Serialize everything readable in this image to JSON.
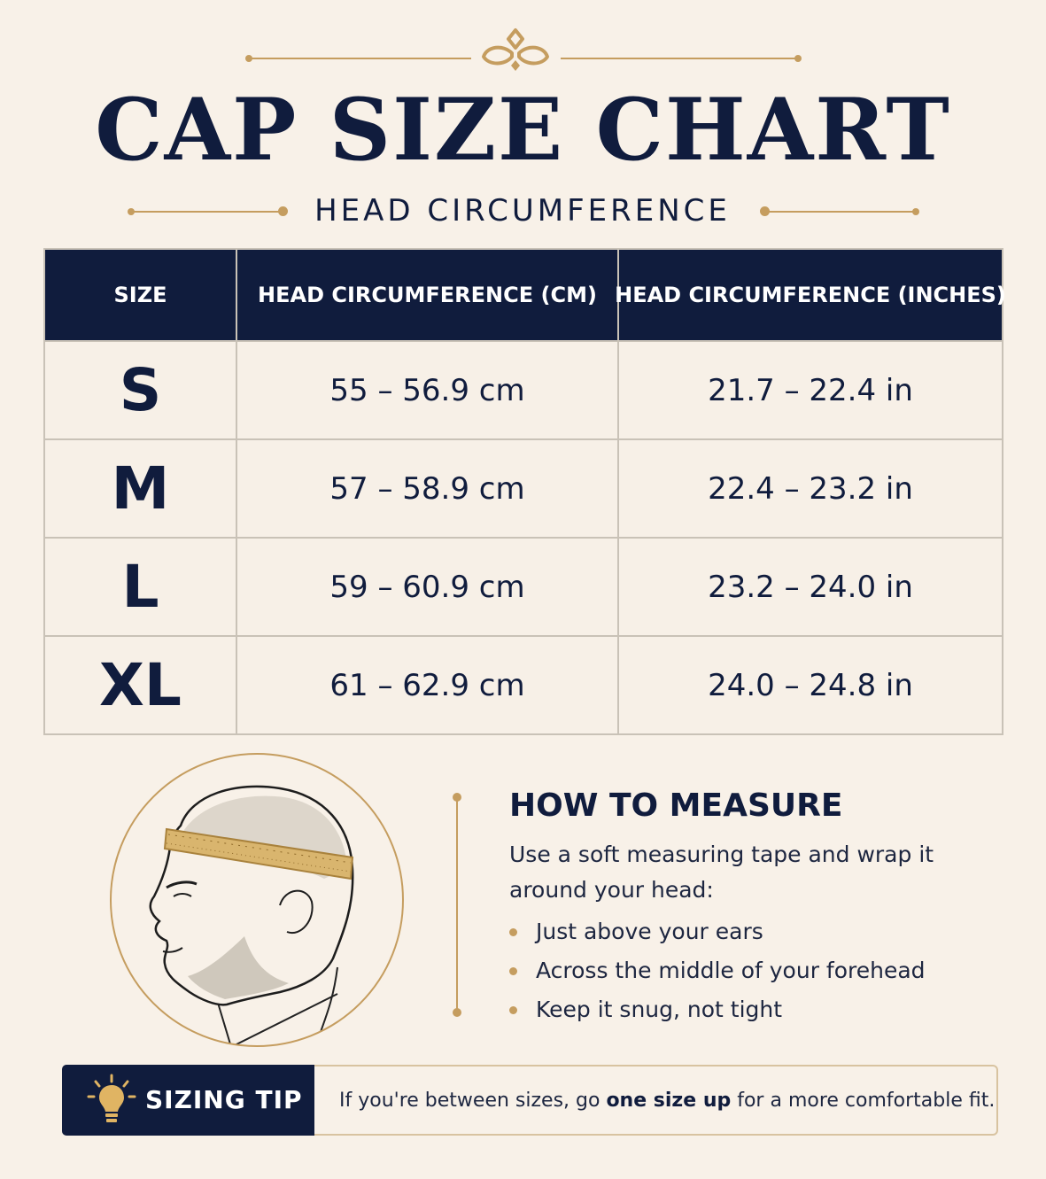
{
  "header": {
    "title": "CAP SIZE CHART",
    "subtitle": "HEAD CIRCUMFERENCE",
    "accent_color": "#c59d5f",
    "navy_color": "#101c3d"
  },
  "table": {
    "columns": [
      "SIZE",
      "HEAD CIRCUMFERENCE (CM)",
      "HEAD CIRCUMFERENCE (INCHES)"
    ],
    "rows": [
      {
        "size": "S",
        "cm": "55 – 56.9 cm",
        "inches": "21.7 – 22.4 in"
      },
      {
        "size": "M",
        "cm": "57 – 58.9 cm",
        "inches": "22.4 – 23.2 in"
      },
      {
        "size": "L",
        "cm": "59 – 60.9 cm",
        "inches": "23.2 – 24.0 in"
      },
      {
        "size": "XL",
        "cm": "61 – 62.9 cm",
        "inches": "24.0 – 24.8 in"
      }
    ]
  },
  "measure": {
    "illustration": "head-with-measuring-tape-icon",
    "title": "HOW TO MEASURE",
    "text": "Use a soft measuring tape and wrap it around your head:",
    "bullets": [
      "Just above your ears",
      "Across the middle of your forehead",
      "Keep it snug, not tight"
    ]
  },
  "tip": {
    "icon": "lightbulb-icon",
    "label": "SIZING TIP",
    "text_before": "If you're between sizes, go ",
    "text_bold": "one size up",
    "text_after": " for a more comfortable fit."
  }
}
